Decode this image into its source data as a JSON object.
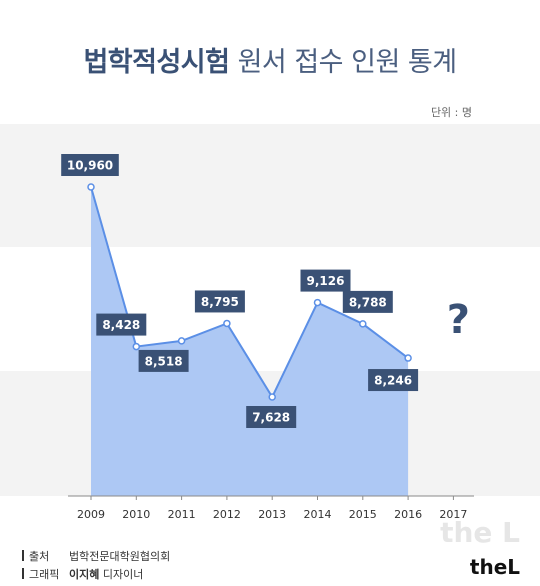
{
  "header": {
    "title_strong": "법학적성시험",
    "title_light": "원서 접수 인원 통계",
    "unit": "단위 : 명"
  },
  "chart_data": {
    "type": "area",
    "title": "법학적성시험 원서 접수 인원 통계",
    "unit": "단위 : 명",
    "categories": [
      "2009",
      "2010",
      "2011",
      "2012",
      "2013",
      "2014",
      "2015",
      "2016",
      "2017"
    ],
    "values": [
      10960,
      8428,
      8518,
      8795,
      7628,
      9126,
      8788,
      8246,
      null
    ],
    "labels": [
      "10,960",
      "8,428",
      "8,518",
      "8,795",
      "7,628",
      "9,126",
      "8,788",
      "8,246",
      null
    ],
    "unknown_marker": "?",
    "ylim": [
      5000,
      11500
    ],
    "grid": "bands",
    "colors": {
      "fill": "#a9c5f3",
      "line": "#5b8fe6",
      "label_bg": "#3a5175",
      "band": "#f3f3f3",
      "question": "#3a5175"
    }
  },
  "footer": {
    "source_label": "출처",
    "source_value": "법학전문대학원협의회",
    "graphic_label": "그래픽",
    "graphic_name": "이지혜",
    "graphic_role": "디자이너"
  },
  "brand": {
    "text": "theL"
  }
}
